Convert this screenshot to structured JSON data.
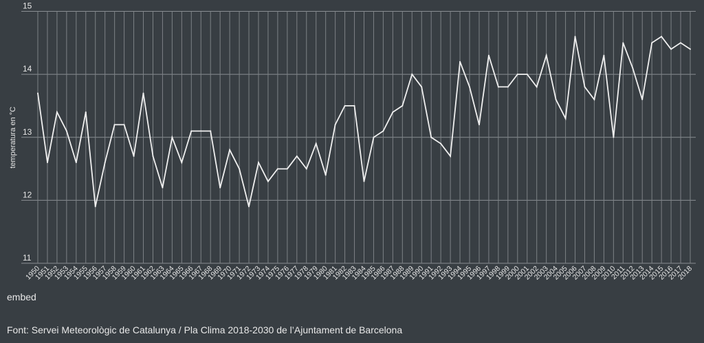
{
  "chart_data": {
    "type": "line",
    "title": "",
    "xlabel": "",
    "ylabel": "temperatura en °C",
    "ylim": [
      11,
      15
    ],
    "yticks": [
      11,
      12,
      13,
      14,
      15
    ],
    "grid": true,
    "line_color": "#f0f0f0",
    "x": [
      1950,
      1951,
      1952,
      1953,
      1954,
      1955,
      1956,
      1957,
      1958,
      1959,
      1960,
      1961,
      1962,
      1963,
      1964,
      1965,
      1966,
      1967,
      1968,
      1969,
      1970,
      1971,
      1972,
      1973,
      1974,
      1975,
      1976,
      1977,
      1978,
      1979,
      1980,
      1981,
      1982,
      1983,
      1984,
      1985,
      1986,
      1987,
      1988,
      1989,
      1990,
      1991,
      1992,
      1993,
      1994,
      1995,
      1996,
      1997,
      1998,
      1999,
      2000,
      2001,
      2002,
      2003,
      2004,
      2005,
      2006,
      2007,
      2008,
      2009,
      2010,
      2011,
      2012,
      2013,
      2014,
      2015,
      2016,
      2017,
      2018
    ],
    "values": [
      13.7,
      12.6,
      13.4,
      13.1,
      12.6,
      13.4,
      11.9,
      12.6,
      13.2,
      13.2,
      12.7,
      13.7,
      12.7,
      12.2,
      13.0,
      12.6,
      13.1,
      13.1,
      13.1,
      12.2,
      12.8,
      12.5,
      11.9,
      12.6,
      12.3,
      12.5,
      12.5,
      12.7,
      12.5,
      12.9,
      12.4,
      13.2,
      13.5,
      13.5,
      12.3,
      13.0,
      13.1,
      13.4,
      13.5,
      14.0,
      13.8,
      13.0,
      12.9,
      12.7,
      14.2,
      13.8,
      13.2,
      14.3,
      13.8,
      13.8,
      14.0,
      14.0,
      13.8,
      14.3,
      13.6,
      13.3,
      14.6,
      13.8,
      13.6,
      14.3,
      13.0,
      14.5,
      14.1,
      13.6,
      14.5,
      14.6,
      14.4,
      14.5,
      14.4
    ]
  },
  "footer": {
    "embed_label": "embed",
    "source": "Font: Servei Meteorològic de Catalunya / Pla Clima 2018-2030 de l’Ajuntament de Barcelona"
  }
}
